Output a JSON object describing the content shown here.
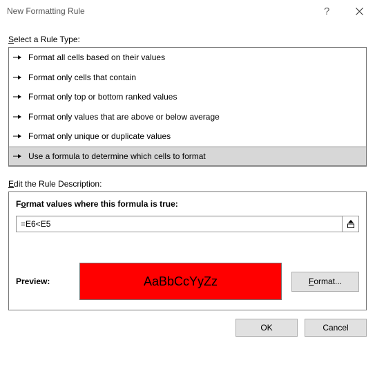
{
  "window": {
    "title": "New Formatting Rule"
  },
  "ruleTypeSection": {
    "label_pre": "S",
    "label_post": "elect a Rule Type:"
  },
  "rules": [
    {
      "label": "Format all cells based on their values",
      "selected": false
    },
    {
      "label": "Format only cells that contain",
      "selected": false
    },
    {
      "label": "Format only top or bottom ranked values",
      "selected": false
    },
    {
      "label": "Format only values that are above or below average",
      "selected": false
    },
    {
      "label": "Format only unique or duplicate values",
      "selected": false
    },
    {
      "label": "Use a formula to determine which cells to format",
      "selected": true
    }
  ],
  "editSection": {
    "label_pre": "E",
    "label_post": "dit the Rule Description:"
  },
  "formula": {
    "label_pre": "F",
    "label_mid": "o",
    "label_post": "rmat values where this formula is true:",
    "value": "=E6<E5"
  },
  "preview": {
    "label": "Preview:",
    "sample_text": "AaBbCcYyZz",
    "bg_color": "#ff0000",
    "text_color": "#000000",
    "format_btn_pre": "F",
    "format_btn_mid": "o",
    "format_btn_post": "rmat..."
  },
  "footer": {
    "ok": "OK",
    "cancel": "Cancel"
  }
}
